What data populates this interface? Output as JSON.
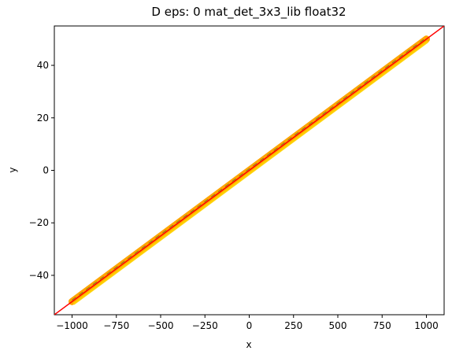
{
  "chart_data": {
    "type": "scatter",
    "title": "D eps: 0 mat_det_3x3_lib float32",
    "xlabel": "x",
    "ylabel": "y",
    "xlim": [
      -1100,
      1100
    ],
    "ylim": [
      -55,
      55
    ],
    "xticks": [
      -1000,
      -750,
      -500,
      -250,
      0,
      250,
      500,
      750,
      1000
    ],
    "yticks": [
      -40,
      -20,
      0,
      20,
      40
    ],
    "xtick_labels": [
      "−1000",
      "−750",
      "−500",
      "−250",
      "0",
      "250",
      "500",
      "750",
      "1000"
    ],
    "ytick_labels": [
      "−40",
      "−20",
      "0",
      "20",
      "40"
    ],
    "grid": false,
    "series": [
      {
        "color": "#ffa500",
        "x": [
          -1000,
          1000
        ],
        "y": [
          -50,
          50
        ]
      },
      {
        "color": "#ff0000",
        "x": [
          -1100,
          1100
        ],
        "y": [
          -55,
          55
        ]
      }
    ]
  }
}
